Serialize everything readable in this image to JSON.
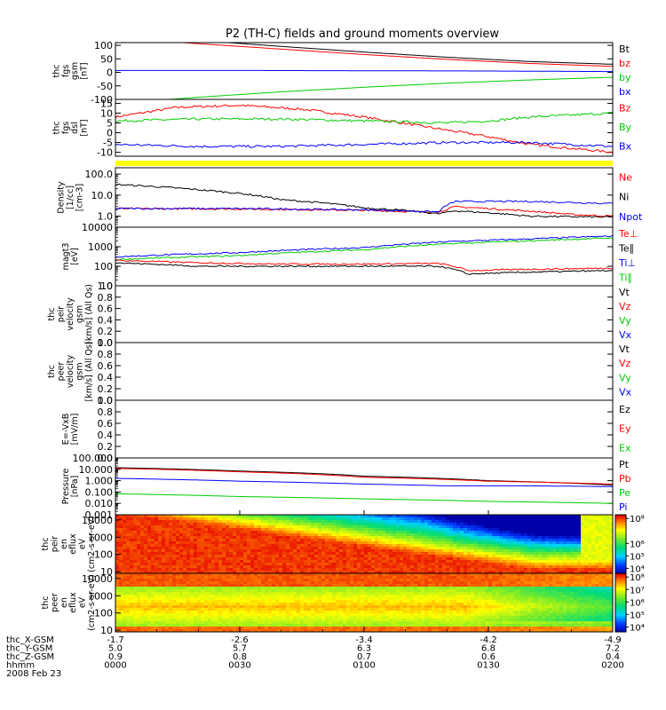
{
  "title": "P2 (TH-C) fields and ground moments overview",
  "colors": {
    "black": "#000000",
    "red": "#ff0000",
    "green": "#00cc00",
    "blue": "#0000ff",
    "yellow": "#ffff00"
  },
  "chart_data": {
    "type": "line",
    "panels": [
      {
        "ylabel": [
          "thc",
          "fgs",
          "gsm",
          "[nT]"
        ],
        "yscale": "linear",
        "ylim": [
          -100,
          110
        ],
        "ytick_values": [
          -100,
          -50,
          0,
          50,
          100
        ],
        "yticks": [
          "-100",
          "-50",
          "0",
          "50",
          "100"
        ],
        "legend": [
          "Bt",
          "bz",
          "by",
          "bx"
        ],
        "series": [
          {
            "name": "Bt",
            "color": "black",
            "points": [
              [
                0,
                140
              ],
              [
                20,
                118
              ],
              [
                40,
                96
              ],
              [
                60,
                75
              ],
              [
                80,
                56
              ],
              [
                100,
                40
              ],
              [
                120,
                30
              ]
            ]
          },
          {
            "name": "bz",
            "color": "red",
            "points": [
              [
                0,
                128
              ],
              [
                20,
                106
              ],
              [
                40,
                86
              ],
              [
                60,
                66
              ],
              [
                80,
                48
              ],
              [
                100,
                33
              ],
              [
                120,
                22
              ]
            ]
          },
          {
            "name": "by",
            "color": "green",
            "points": [
              [
                0,
                -115
              ],
              [
                20,
                -92
              ],
              [
                40,
                -72
              ],
              [
                60,
                -55
              ],
              [
                80,
                -40
              ],
              [
                100,
                -28
              ],
              [
                120,
                -18
              ]
            ]
          },
          {
            "name": "bx",
            "color": "blue",
            "points": [
              [
                0,
                7
              ],
              [
                30,
                7
              ],
              [
                60,
                6
              ],
              [
                90,
                5
              ],
              [
                120,
                3
              ]
            ]
          }
        ]
      },
      {
        "ylabel": [
          "thc",
          "fgs",
          "dsl",
          "[nT]"
        ],
        "yscale": "linear",
        "ylim": [
          -12,
          17
        ],
        "ytick_values": [
          -10,
          -5,
          0,
          5,
          10,
          15
        ],
        "yticks": [
          "-10",
          "-5",
          "0",
          "5",
          "10",
          "15"
        ],
        "legend": [
          "Bz",
          "By",
          "Bx"
        ],
        "noise": 0.6,
        "series": [
          {
            "name": "Bz",
            "color": "red",
            "points": [
              [
                0,
                8
              ],
              [
                15,
                13
              ],
              [
                30,
                14
              ],
              [
                45,
                12
              ],
              [
                60,
                8
              ],
              [
                75,
                3
              ],
              [
                90,
                -2
              ],
              [
                100,
                -6
              ],
              [
                110,
                -8
              ],
              [
                120,
                -10
              ]
            ]
          },
          {
            "name": "By",
            "color": "green",
            "points": [
              [
                0,
                6
              ],
              [
                20,
                7
              ],
              [
                40,
                7
              ],
              [
                60,
                6
              ],
              [
                80,
                5
              ],
              [
                90,
                6
              ],
              [
                100,
                8
              ],
              [
                120,
                10
              ]
            ]
          },
          {
            "name": "Bx",
            "color": "blue",
            "points": [
              [
                0,
                -6
              ],
              [
                20,
                -7
              ],
              [
                40,
                -7
              ],
              [
                60,
                -6
              ],
              [
                80,
                -5
              ],
              [
                100,
                -5
              ],
              [
                120,
                -7
              ]
            ]
          }
        ]
      },
      {
        "ylabel": [
          "Density",
          "[1/cc]",
          "[cm-3]"
        ],
        "yscale": "log",
        "ylim": [
          0.3,
          200
        ],
        "ytick_values": [
          1,
          10,
          100
        ],
        "yticks": [
          "1.0",
          "10.0",
          "100.0"
        ],
        "legend": [
          "Ne",
          "Ni",
          "Npot"
        ],
        "noise": 0.08,
        "series": [
          {
            "name": "Ne",
            "color": "red",
            "points": [
              [
                0,
                2.3
              ],
              [
                30,
                2.2
              ],
              [
                60,
                1.9
              ],
              [
                78,
                1.5
              ],
              [
                82,
                2.8
              ],
              [
                95,
                2.0
              ],
              [
                110,
                1.2
              ],
              [
                120,
                1.0
              ]
            ]
          },
          {
            "name": "Ni",
            "color": "black",
            "points": [
              [
                0,
                32
              ],
              [
                20,
                18
              ],
              [
                40,
                6
              ],
              [
                60,
                2.5
              ],
              [
                78,
                1.3
              ],
              [
                82,
                1.8
              ],
              [
                100,
                1.0
              ],
              [
                120,
                0.9
              ]
            ]
          },
          {
            "name": "Npot",
            "color": "blue",
            "points": [
              [
                0,
                2.3
              ],
              [
                30,
                2.3
              ],
              [
                60,
                2.0
              ],
              [
                78,
                1.6
              ],
              [
                82,
                5
              ],
              [
                100,
                5
              ],
              [
                120,
                4
              ]
            ]
          }
        ]
      },
      {
        "ylabel": [
          "magt3",
          "[eV]"
        ],
        "yscale": "log",
        "ylim": [
          10,
          10000
        ],
        "ytick_values": [
          10,
          100,
          1000,
          10000
        ],
        "yticks": [
          "10",
          "100",
          "1000",
          "10000"
        ],
        "legend": [
          "Te⊥",
          "Te∥",
          "Ti⊥",
          "Ti∥"
        ],
        "noise": 0.07,
        "series": [
          {
            "name": "Ti⊥",
            "color": "blue",
            "points": [
              [
                0,
                300
              ],
              [
                30,
                500
              ],
              [
                60,
                900
              ],
              [
                80,
                1800
              ],
              [
                100,
                2500
              ],
              [
                120,
                3500
              ]
            ]
          },
          {
            "name": "Ti∥",
            "color": "green",
            "points": [
              [
                0,
                220
              ],
              [
                30,
                350
              ],
              [
                60,
                700
              ],
              [
                80,
                1400
              ],
              [
                100,
                2000
              ],
              [
                120,
                2800
              ]
            ]
          },
          {
            "name": "Te⊥",
            "color": "red",
            "points": [
              [
                0,
                200
              ],
              [
                20,
                150
              ],
              [
                40,
                130
              ],
              [
                60,
                130
              ],
              [
                78,
                140
              ],
              [
                85,
                60
              ],
              [
                100,
                70
              ],
              [
                120,
                80
              ]
            ]
          },
          {
            "name": "Te∥",
            "color": "black",
            "points": [
              [
                0,
                150
              ],
              [
                20,
                100
              ],
              [
                40,
                100
              ],
              [
                60,
                100
              ],
              [
                78,
                100
              ],
              [
                85,
                40
              ],
              [
                100,
                50
              ],
              [
                120,
                60
              ]
            ]
          }
        ]
      },
      {
        "ylabel": [
          "thc",
          "peir",
          "velocity",
          "gsm",
          "[km/s] (All Qs)"
        ],
        "yscale": "linear",
        "ylim": [
          0,
          1
        ],
        "ytick_values": [
          0,
          0.2,
          0.4,
          0.6,
          0.8,
          1.0
        ],
        "yticks": [
          "0.0",
          "0.2",
          "0.4",
          "0.6",
          "0.8",
          "1.0"
        ],
        "legend": [
          "Vt",
          "Vz",
          "Vy",
          "Vx"
        ],
        "series": []
      },
      {
        "ylabel": [
          "thc",
          "peer",
          "velocity",
          "gsm",
          "[km/s] (All Qs)"
        ],
        "yscale": "linear",
        "ylim": [
          0,
          1
        ],
        "ytick_values": [
          0,
          0.2,
          0.4,
          0.6,
          0.8,
          1.0
        ],
        "yticks": [
          "0.0",
          "0.2",
          "0.4",
          "0.6",
          "0.8",
          "1.0"
        ],
        "legend": [
          "Vt",
          "Vz",
          "Vy",
          "Vx"
        ],
        "series": []
      },
      {
        "ylabel": [
          "E=-VxB",
          "[mV/m]"
        ],
        "yscale": "linear",
        "ylim": [
          0,
          1
        ],
        "ytick_values": [
          0,
          0.2,
          0.4,
          0.6,
          0.8,
          1.0
        ],
        "yticks": [
          "0.0",
          "0.2",
          "0.4",
          "0.6",
          "0.8",
          "1.0"
        ],
        "legend": [
          "Ez",
          "Ey",
          "Ex"
        ],
        "series": []
      },
      {
        "ylabel": [
          "Pressure",
          "[nPa]"
        ],
        "yscale": "log",
        "ylim": [
          0.001,
          100
        ],
        "ytick_values": [
          0.001,
          0.01,
          0.1,
          1,
          10,
          100
        ],
        "yticks": [
          "0.001",
          "0.010",
          "0.100",
          "1.000",
          "10.000",
          "100.000"
        ],
        "legend": [
          "Pt",
          "Pb",
          "Pe",
          "Pi"
        ],
        "series": [
          {
            "name": "Pt",
            "color": "black",
            "points": [
              [
                0,
                14
              ],
              [
                30,
                7
              ],
              [
                60,
                2.5
              ],
              [
                90,
                1
              ],
              [
                120,
                0.4
              ]
            ]
          },
          {
            "name": "Pb",
            "color": "red",
            "points": [
              [
                0,
                12
              ],
              [
                30,
                6
              ],
              [
                60,
                2
              ],
              [
                90,
                0.9
              ],
              [
                120,
                0.5
              ]
            ]
          },
          {
            "name": "Pi",
            "color": "blue",
            "points": [
              [
                0,
                1.6
              ],
              [
                30,
                0.9
              ],
              [
                60,
                0.5
              ],
              [
                80,
                0.35
              ],
              [
                100,
                0.35
              ],
              [
                120,
                0.3
              ]
            ]
          },
          {
            "name": "Pe",
            "color": "green",
            "points": [
              [
                0,
                0.07
              ],
              [
                30,
                0.04
              ],
              [
                60,
                0.025
              ],
              [
                90,
                0.015
              ],
              [
                120,
                0.01
              ]
            ]
          }
        ]
      }
    ],
    "spectrograms": [
      {
        "ylabel": [
          "thc",
          "peir",
          "en",
          "eflux",
          "eV",
          "(cm2-s-sr-eV)"
        ],
        "yscale": "log",
        "ylim": [
          8,
          20000
        ],
        "ytick_values": [
          10,
          100,
          1000,
          10000
        ],
        "yticks": [
          "10",
          "100",
          "1000",
          "10000"
        ],
        "colorbar_ticks": [
          "10⁸",
          "10⁶",
          "10⁵",
          "10⁴"
        ],
        "colorbar_levels": [
          8,
          6,
          5,
          4
        ]
      },
      {
        "ylabel": [
          "thc",
          "peer",
          "en",
          "eflux",
          "eV",
          "(cm2-s-sr-eV)"
        ],
        "yscale": "log",
        "ylim": [
          8,
          20000
        ],
        "ytick_values": [
          10,
          100,
          1000,
          10000
        ],
        "yticks": [
          "10",
          "100",
          "1000",
          "10000"
        ],
        "colorbar_ticks": [
          "10⁸",
          "10⁷",
          "10⁶",
          "10⁵",
          "10⁴"
        ],
        "colorbar_levels": [
          8,
          7,
          6,
          5,
          4
        ]
      }
    ],
    "x_axis": {
      "unit": "minutes",
      "xlim": [
        0,
        120
      ],
      "ticks": [
        0,
        30,
        60,
        90,
        120
      ],
      "rows": [
        {
          "label": "thc_X-GSM",
          "values": [
            "-1.7",
            "-2.6",
            "-3.4",
            "-4.2",
            "-4.9"
          ]
        },
        {
          "label": "thc_Y-GSM",
          "values": [
            "5.0",
            "5.7",
            "6.3",
            "6.8",
            "7.2"
          ]
        },
        {
          "label": "thc_Z-GSM",
          "values": [
            "0.9",
            "0.8",
            "0.7",
            "0.6",
            "0.4"
          ]
        },
        {
          "label": "hhmm",
          "values": [
            "0000",
            "0030",
            "0100",
            "0130",
            "0200"
          ]
        }
      ],
      "date": "2008 Feb 23"
    }
  }
}
